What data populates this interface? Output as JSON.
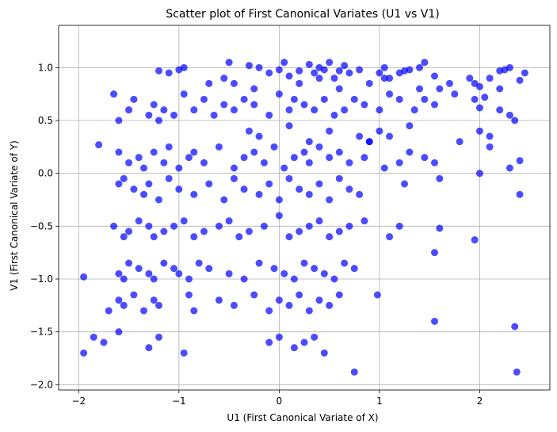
{
  "chart_data": {
    "type": "scatter",
    "title": "Scatter plot of First Canonical Variates (U1 vs V1)",
    "xlabel": "U1 (First Canonical Variate of X)",
    "ylabel": "V1 (First Canonical Variate of Y)",
    "xlim": [
      -2.2,
      2.7
    ],
    "ylim": [
      -2.05,
      1.4
    ],
    "xticks": [
      -2,
      -1,
      0,
      1,
      2
    ],
    "yticks": [
      -2.0,
      -1.5,
      -1.0,
      -0.5,
      0.0,
      0.5,
      1.0
    ],
    "xtick_labels": [
      "−2",
      "−1",
      "0",
      "1",
      "2"
    ],
    "ytick_labels": [
      "−2.0",
      "−1.5",
      "−1.0",
      "−0.5",
      "0.0",
      "0.5",
      "1.0"
    ],
    "grid": true,
    "marker_color": "#0000ff",
    "marker_alpha": 0.7,
    "series": [
      {
        "x": [
          -1.2,
          -1.1,
          -1.0,
          -0.95,
          -0.5,
          -0.45,
          -0.3,
          -0.2,
          -0.1,
          0.0,
          0.05,
          0.1,
          0.2,
          0.3,
          0.35,
          0.4,
          0.45,
          0.5,
          0.55,
          0.6,
          0.65,
          0.7,
          0.8,
          1.0,
          1.05,
          1.1,
          1.2,
          1.25,
          1.3,
          1.4,
          1.45,
          1.55,
          1.6,
          1.95,
          2.0,
          2.1,
          2.2,
          2.25,
          2.3,
          2.4,
          2.45,
          -1.65,
          -1.6,
          -1.5,
          -1.45,
          -1.3,
          -1.25,
          -1.2,
          -1.15,
          -1.05,
          -0.95,
          -0.85,
          -0.75,
          -0.65,
          -0.55,
          -0.45,
          -0.35,
          -0.25,
          -0.1,
          0.0,
          0.1,
          0.15,
          0.25,
          0.35,
          0.45,
          0.55,
          0.65,
          0.75,
          0.85,
          1.0,
          1.1,
          1.2,
          1.35,
          1.45,
          1.55,
          1.75,
          1.95,
          2.0,
          2.05,
          2.2,
          2.3,
          2.35,
          -1.8,
          -1.6,
          -1.5,
          -1.4,
          -1.35,
          -1.25,
          -1.15,
          -1.1,
          -1.0,
          -0.9,
          -0.85,
          -0.75,
          -0.6,
          -0.45,
          -0.35,
          -0.25,
          -0.15,
          -0.05,
          0.05,
          0.15,
          0.25,
          0.3,
          0.4,
          0.5,
          0.6,
          0.7,
          0.85,
          0.9,
          1.05,
          1.2,
          1.3,
          1.45,
          1.55,
          2.0,
          2.1,
          2.3,
          2.4,
          -1.6,
          -1.55,
          -1.45,
          -1.35,
          -1.3,
          -1.2,
          -1.1,
          -1.0,
          -0.85,
          -0.7,
          -0.55,
          -0.45,
          -0.35,
          -0.2,
          -0.1,
          0.0,
          0.1,
          0.2,
          0.3,
          0.4,
          0.5,
          0.6,
          0.7,
          0.8,
          1.25,
          1.6,
          2.4,
          -1.65,
          -1.55,
          -1.5,
          -1.4,
          -1.3,
          -1.25,
          -1.15,
          -1.05,
          -0.95,
          -0.85,
          -0.75,
          -0.6,
          -0.5,
          -0.4,
          -0.3,
          -0.15,
          0.0,
          0.1,
          0.2,
          0.3,
          0.4,
          0.5,
          0.6,
          0.7,
          0.85,
          1.1,
          1.2,
          1.6,
          1.95,
          -1.95,
          -1.6,
          -1.55,
          -1.5,
          -1.4,
          -1.3,
          -1.25,
          -1.15,
          -1.05,
          -1.0,
          -0.9,
          -0.8,
          -0.7,
          -0.5,
          -0.35,
          -0.2,
          -0.05,
          0.05,
          0.15,
          0.25,
          0.35,
          0.45,
          0.55,
          0.65,
          0.75,
          0.98,
          1.55,
          -1.7,
          -1.6,
          -1.55,
          -1.45,
          -1.35,
          -1.25,
          -1.2,
          -0.9,
          -0.85,
          -0.6,
          -0.45,
          -0.25,
          -0.1,
          0.0,
          0.1,
          0.2,
          0.3,
          0.4,
          0.5,
          0.6,
          1.55,
          2.35,
          -1.95,
          -1.85,
          -1.75,
          -1.6,
          -1.3,
          -1.2,
          -0.95,
          -0.1,
          0.0,
          0.15,
          0.25,
          0.35,
          0.45,
          0.75,
          2.37,
          -0.3,
          -0.2,
          0.1,
          0.3,
          0.5,
          0.8,
          0.9,
          1.0,
          1.1,
          1.3,
          1.8,
          2.0,
          2.1,
          -0.7,
          -0.55,
          -0.25,
          0.2,
          0.4,
          0.6,
          0.9,
          1.05,
          1.4,
          1.7,
          1.9,
          2.2
        ],
        "y": [
          0.97,
          0.95,
          0.98,
          1.0,
          1.05,
          0.85,
          1.02,
          1.0,
          0.95,
          0.98,
          1.05,
          0.92,
          0.97,
          1.03,
          0.95,
          1.0,
          0.98,
          1.05,
          0.9,
          0.97,
          1.02,
          0.95,
          0.98,
          0.95,
          1.0,
          0.9,
          0.95,
          0.97,
          0.98,
          1.0,
          1.05,
          0.92,
          0.8,
          0.85,
          0.82,
          0.9,
          0.97,
          0.98,
          1.0,
          0.88,
          0.95,
          0.75,
          0.5,
          0.6,
          0.7,
          0.55,
          0.65,
          0.5,
          0.6,
          0.55,
          0.75,
          0.6,
          0.7,
          0.55,
          0.65,
          0.6,
          0.7,
          0.65,
          0.55,
          0.75,
          0.6,
          0.7,
          0.65,
          0.6,
          0.7,
          0.55,
          0.6,
          0.7,
          0.65,
          0.6,
          0.75,
          0.7,
          0.6,
          0.7,
          0.65,
          0.75,
          0.7,
          0.62,
          0.72,
          0.6,
          0.55,
          0.5,
          0.27,
          0.2,
          0.1,
          0.15,
          0.05,
          0.2,
          0.1,
          0.25,
          0.05,
          0.15,
          0.2,
          0.1,
          0.25,
          0.05,
          0.15,
          0.2,
          0.1,
          0.25,
          0.05,
          0.15,
          0.2,
          0.1,
          0.25,
          0.15,
          0.2,
          0.1,
          0.15,
          0.3,
          0.05,
          0.1,
          0.2,
          0.15,
          0.1,
          0.0,
          0.25,
          0.05,
          0.12,
          -0.1,
          -0.05,
          -0.15,
          -0.2,
          -0.1,
          -0.25,
          -0.05,
          -0.15,
          -0.2,
          -0.1,
          -0.25,
          -0.05,
          -0.15,
          -0.2,
          -0.1,
          -0.25,
          -0.05,
          -0.15,
          -0.2,
          -0.1,
          -0.25,
          -0.05,
          -0.15,
          -0.2,
          -0.1,
          -0.05,
          -0.2,
          -0.5,
          -0.6,
          -0.55,
          -0.45,
          -0.5,
          -0.6,
          -0.55,
          -0.5,
          -0.45,
          -0.6,
          -0.55,
          -0.5,
          -0.45,
          -0.6,
          -0.55,
          -0.5,
          -0.4,
          -0.6,
          -0.55,
          -0.5,
          -0.45,
          -0.6,
          -0.55,
          -0.5,
          -0.45,
          -0.6,
          -0.5,
          -0.52,
          -0.63,
          -0.98,
          -0.95,
          -1.0,
          -0.85,
          -0.9,
          -0.95,
          -1.0,
          -0.85,
          -0.9,
          -0.95,
          -1.0,
          -0.85,
          -0.9,
          -0.95,
          -1.0,
          -0.85,
          -0.9,
          -0.95,
          -1.0,
          -0.85,
          -0.9,
          -0.95,
          -1.0,
          -0.85,
          -0.9,
          -1.15,
          -0.75,
          -1.3,
          -1.2,
          -1.25,
          -1.15,
          -1.3,
          -1.2,
          -1.25,
          -1.15,
          -1.3,
          -1.2,
          -1.25,
          -1.15,
          -1.3,
          -1.2,
          -1.25,
          -1.15,
          -1.3,
          -1.2,
          -1.25,
          -1.15,
          -1.4,
          -1.45,
          -1.7,
          -1.55,
          -1.6,
          -1.5,
          -1.65,
          -1.55,
          -1.7,
          -1.6,
          -1.55,
          -1.65,
          -1.6,
          -1.55,
          -1.7,
          -1.88,
          -1.88,
          0.4,
          0.35,
          0.45,
          0.3,
          0.4,
          0.35,
          0.3,
          0.4,
          0.35,
          0.45,
          0.3,
          0.4,
          0.35,
          0.85,
          0.9,
          0.8,
          0.85,
          0.9,
          0.8,
          0.85,
          0.9,
          0.8,
          0.85,
          0.9,
          0.8
        ]
      }
    ]
  }
}
